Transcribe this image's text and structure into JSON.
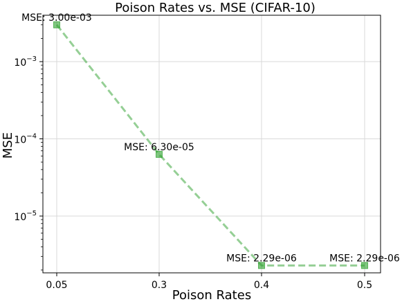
{
  "chart_data": {
    "type": "line",
    "title": "Poison Rates vs. MSE (CIFAR-10)",
    "xlabel": "Poison Rates",
    "ylabel": "MSE",
    "x_scale": "categorical",
    "y_scale": "log",
    "grid": true,
    "categories": [
      "0.05",
      "0.3",
      "0.4",
      "0.5"
    ],
    "series": [
      {
        "values": [
          0.003,
          6.3e-05,
          2.29e-06,
          2.29e-06
        ],
        "color": "#2ca02c",
        "line_style": "dashed",
        "marker": "square"
      }
    ],
    "annotations": [
      "MSE: 3.00e-03",
      "MSE: 6.30e-05",
      "MSE: 2.29e-06",
      "MSE: 2.29e-06"
    ],
    "y_ticks": [
      {
        "value": 0.001,
        "base": "10",
        "exp": "−3"
      },
      {
        "value": 0.0001,
        "base": "10",
        "exp": "−4"
      },
      {
        "value": 1e-05,
        "base": "10",
        "exp": "−5"
      }
    ]
  }
}
